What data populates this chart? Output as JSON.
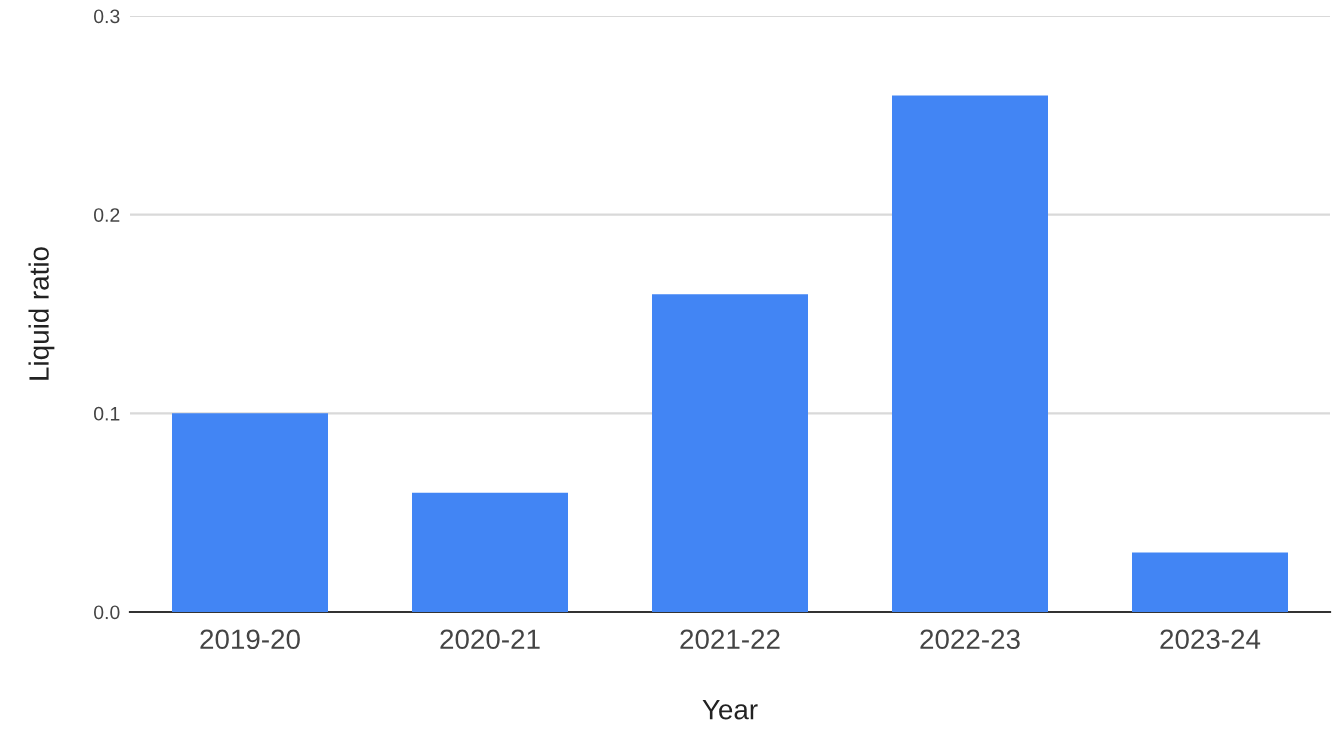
{
  "chart_data": {
    "type": "bar",
    "xlabel": "Year",
    "ylabel": "Liquid ratio",
    "categories": [
      "2019-20",
      "2020-21",
      "2021-22",
      "2022-23",
      "2023-24"
    ],
    "values": [
      0.1,
      0.06,
      0.16,
      0.26,
      0.03
    ],
    "color": "#4285f4",
    "ylim": [
      0,
      0.3
    ],
    "yticks": [
      {
        "value": 0,
        "label": "0.0"
      },
      0.1,
      0.2,
      0.3
    ],
    "grid": "y",
    "legend": false
  }
}
